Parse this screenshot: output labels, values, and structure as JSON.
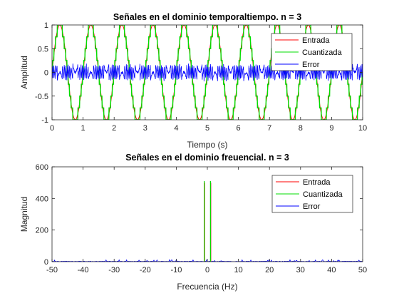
{
  "chart_data": [
    {
      "type": "line",
      "title": "Señales en el dominio temporaltiempo. n = 3",
      "xlabel": "Tiempo (s)",
      "ylabel": "Amplitud",
      "xlim": [
        0,
        10
      ],
      "ylim": [
        -1,
        1
      ],
      "xticks": [
        0,
        1,
        2,
        3,
        4,
        5,
        6,
        7,
        8,
        9,
        10
      ],
      "xtick_labels": [
        "0",
        "1",
        "2",
        "3",
        "4",
        "5",
        "6",
        "7",
        "8",
        "9",
        "10"
      ],
      "yticks": [
        -1,
        -0.5,
        0,
        0.5,
        1
      ],
      "ytick_labels": [
        "-1",
        "-0.5",
        "0",
        "0.5",
        "1"
      ],
      "grid": false,
      "legend_position": "top-right",
      "series": [
        {
          "name": "Entrada",
          "color": "#ff0000",
          "kind": "sine",
          "frequency_hz": 1,
          "amplitude": 1
        },
        {
          "name": "Cuantizada",
          "color": "#00dd00",
          "kind": "quantized-sine",
          "frequency_hz": 1,
          "amplitude": 1,
          "bits": 3
        },
        {
          "name": "Error",
          "color": "#0000ff",
          "kind": "quantization-error",
          "approx_range": [
            -0.14,
            0.14
          ]
        }
      ]
    },
    {
      "type": "line",
      "title": "Señales en el dominio freuencial. n = 3",
      "xlabel": "Frecuencia (Hz)",
      "ylabel": "Magnitud",
      "xlim": [
        -50,
        50
      ],
      "ylim": [
        0,
        600
      ],
      "xticks": [
        -50,
        -40,
        -30,
        -20,
        -10,
        0,
        10,
        20,
        30,
        40,
        50
      ],
      "xtick_labels": [
        "-50",
        "-40",
        "-30",
        "-20",
        "-10",
        "0",
        "10",
        "20",
        "30",
        "40",
        "50"
      ],
      "yticks": [
        0,
        200,
        400,
        600
      ],
      "ytick_labels": [
        "0",
        "200",
        "400",
        "600"
      ],
      "grid": false,
      "legend_position": "top-right",
      "series": [
        {
          "name": "Entrada",
          "color": "#ff0000",
          "peaks": [
            {
              "x": -1,
              "y": 500
            },
            {
              "x": 1,
              "y": 500
            }
          ]
        },
        {
          "name": "Cuantizada",
          "color": "#00dd00",
          "peaks": [
            {
              "x": -1,
              "y": 510
            },
            {
              "x": 1,
              "y": 510
            }
          ]
        },
        {
          "name": "Error",
          "color": "#0000ff",
          "noise_floor": 3,
          "max_spur": 12
        }
      ]
    }
  ]
}
